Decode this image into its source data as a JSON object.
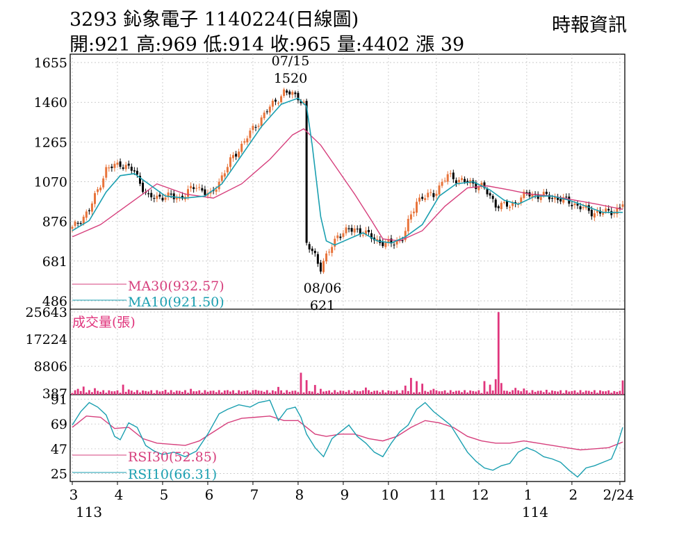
{
  "header": {
    "title": "3293  鈊象電子 1140224(日線圖)",
    "ohlc": "開:921 高:969 低:914 收:965 量:4402 漲 39",
    "brand": "時報資訊"
  },
  "colors": {
    "up": "#e8743b",
    "down": "#000000",
    "ma30": "#d63f7c",
    "ma10": "#1a9fb0",
    "rsi30": "#d63f7c",
    "rsi10": "#1a9fb0",
    "volume": "#e0357d"
  },
  "chart_data": [
    {
      "type": "candlestick",
      "panel": "price",
      "ylim": [
        486,
        1655
      ],
      "yticks": [
        "1655",
        "1460",
        "1265",
        "1070",
        "876",
        "681",
        "486"
      ],
      "xticks": [
        "3",
        "4",
        "5",
        "6",
        "7",
        "8",
        "9",
        "10",
        "11",
        "12",
        "1",
        "2",
        "2/24"
      ],
      "xsub": [
        "113",
        "114"
      ],
      "annotations": [
        {
          "date": "07/15",
          "value": "1520"
        },
        {
          "date": "08/06",
          "value": "621"
        }
      ],
      "legend": [
        "MA30(932.57)",
        "MA10(921.50)"
      ],
      "anchors": [
        [
          0,
          840
        ],
        [
          6,
          930
        ],
        [
          12,
          1130
        ],
        [
          17,
          1160
        ],
        [
          22,
          1120
        ],
        [
          27,
          990
        ],
        [
          33,
          1000
        ],
        [
          38,
          990
        ],
        [
          44,
          1050
        ],
        [
          49,
          1000
        ],
        [
          56,
          1170
        ],
        [
          62,
          1290
        ],
        [
          69,
          1420
        ],
        [
          75,
          1510
        ],
        [
          80,
          1490
        ],
        [
          82,
          1450
        ],
        [
          83,
          760
        ],
        [
          86,
          710
        ],
        [
          88,
          650
        ],
        [
          90,
          700
        ],
        [
          94,
          810
        ],
        [
          100,
          840
        ],
        [
          106,
          800
        ],
        [
          111,
          760
        ],
        [
          117,
          790
        ],
        [
          122,
          980
        ],
        [
          128,
          1010
        ],
        [
          133,
          1100
        ],
        [
          139,
          1070
        ],
        [
          145,
          1050
        ],
        [
          150,
          960
        ],
        [
          155,
          950
        ],
        [
          161,
          1010
        ],
        [
          167,
          1000
        ],
        [
          172,
          990
        ],
        [
          178,
          960
        ],
        [
          184,
          920
        ],
        [
          190,
          920
        ],
        [
          194,
          940
        ],
        [
          195,
          965
        ]
      ],
      "ma30": [
        [
          0,
          800
        ],
        [
          10,
          860
        ],
        [
          20,
          960
        ],
        [
          30,
          1060
        ],
        [
          40,
          1010
        ],
        [
          50,
          990
        ],
        [
          60,
          1060
        ],
        [
          70,
          1180
        ],
        [
          78,
          1300
        ],
        [
          82,
          1330
        ],
        [
          88,
          1250
        ],
        [
          94,
          1130
        ],
        [
          100,
          1010
        ],
        [
          106,
          880
        ],
        [
          110,
          790
        ],
        [
          116,
          780
        ],
        [
          124,
          830
        ],
        [
          132,
          950
        ],
        [
          140,
          1040
        ],
        [
          147,
          1050
        ],
        [
          155,
          1030
        ],
        [
          162,
          1010
        ],
        [
          170,
          1000
        ],
        [
          178,
          980
        ],
        [
          186,
          960
        ],
        [
          195,
          935
        ]
      ],
      "ma10": [
        [
          0,
          830
        ],
        [
          6,
          880
        ],
        [
          12,
          1020
        ],
        [
          17,
          1100
        ],
        [
          22,
          1110
        ],
        [
          27,
          1060
        ],
        [
          33,
          1000
        ],
        [
          40,
          990
        ],
        [
          47,
          1000
        ],
        [
          53,
          1060
        ],
        [
          60,
          1200
        ],
        [
          67,
          1340
        ],
        [
          74,
          1450
        ],
        [
          80,
          1480
        ],
        [
          83,
          1440
        ],
        [
          85,
          1250
        ],
        [
          88,
          900
        ],
        [
          90,
          780
        ],
        [
          93,
          760
        ],
        [
          98,
          790
        ],
        [
          103,
          820
        ],
        [
          108,
          780
        ],
        [
          113,
          770
        ],
        [
          118,
          800
        ],
        [
          124,
          860
        ],
        [
          130,
          1000
        ],
        [
          136,
          1060
        ],
        [
          142,
          1070
        ],
        [
          148,
          1030
        ],
        [
          153,
          980
        ],
        [
          158,
          960
        ],
        [
          164,
          1000
        ],
        [
          170,
          1000
        ],
        [
          176,
          980
        ],
        [
          182,
          950
        ],
        [
          188,
          920
        ],
        [
          195,
          920
        ]
      ]
    },
    {
      "type": "bar",
      "panel": "volume",
      "title": "成交量(張)",
      "ylim": [
        0,
        25643
      ],
      "yticks": [
        "25643",
        "17224",
        "8806",
        "387"
      ],
      "spikes": [
        [
          2,
          1800
        ],
        [
          4,
          2500
        ],
        [
          8,
          2000
        ],
        [
          18,
          3100
        ],
        [
          20,
          1600
        ],
        [
          33,
          1500
        ],
        [
          42,
          1800
        ],
        [
          55,
          1400
        ],
        [
          65,
          1500
        ],
        [
          73,
          2400
        ],
        [
          81,
          6800
        ],
        [
          83,
          4500
        ],
        [
          86,
          3000
        ],
        [
          88,
          1800
        ],
        [
          104,
          2200
        ],
        [
          118,
          2800
        ],
        [
          120,
          5200
        ],
        [
          122,
          4200
        ],
        [
          124,
          3400
        ],
        [
          128,
          1800
        ],
        [
          146,
          4200
        ],
        [
          148,
          3100
        ],
        [
          150,
          4800
        ],
        [
          151,
          25600
        ],
        [
          152,
          3600
        ],
        [
          157,
          2100
        ],
        [
          160,
          1900
        ],
        [
          168,
          1500
        ],
        [
          178,
          1300
        ],
        [
          192,
          1100
        ],
        [
          195,
          4402
        ]
      ]
    },
    {
      "type": "line",
      "panel": "rsi",
      "ylim": [
        18,
        95
      ],
      "yticks": [
        "91",
        "69",
        "47",
        "25"
      ],
      "legend": [
        "RSI30(52.85)",
        "RSI10(66.31)"
      ],
      "rsi10": [
        [
          0,
          68
        ],
        [
          3,
          80
        ],
        [
          6,
          88
        ],
        [
          9,
          84
        ],
        [
          12,
          77
        ],
        [
          15,
          58
        ],
        [
          17,
          55
        ],
        [
          20,
          70
        ],
        [
          23,
          66
        ],
        [
          26,
          50
        ],
        [
          29,
          45
        ],
        [
          32,
          42
        ],
        [
          36,
          44
        ],
        [
          40,
          40
        ],
        [
          44,
          45
        ],
        [
          48,
          60
        ],
        [
          52,
          78
        ],
        [
          55,
          82
        ],
        [
          59,
          86
        ],
        [
          63,
          84
        ],
        [
          66,
          88
        ],
        [
          70,
          90
        ],
        [
          73,
          72
        ],
        [
          76,
          82
        ],
        [
          79,
          84
        ],
        [
          81,
          75
        ],
        [
          83,
          60
        ],
        [
          86,
          48
        ],
        [
          89,
          40
        ],
        [
          92,
          56
        ],
        [
          95,
          62
        ],
        [
          98,
          68
        ],
        [
          101,
          58
        ],
        [
          104,
          52
        ],
        [
          107,
          44
        ],
        [
          110,
          40
        ],
        [
          113,
          52
        ],
        [
          116,
          62
        ],
        [
          119,
          68
        ],
        [
          122,
          82
        ],
        [
          125,
          88
        ],
        [
          128,
          80
        ],
        [
          131,
          74
        ],
        [
          134,
          68
        ],
        [
          137,
          56
        ],
        [
          140,
          44
        ],
        [
          143,
          36
        ],
        [
          146,
          30
        ],
        [
          149,
          28
        ],
        [
          152,
          32
        ],
        [
          155,
          34
        ],
        [
          158,
          44
        ],
        [
          161,
          48
        ],
        [
          164,
          45
        ],
        [
          167,
          40
        ],
        [
          170,
          38
        ],
        [
          173,
          35
        ],
        [
          176,
          28
        ],
        [
          179,
          22
        ],
        [
          182,
          30
        ],
        [
          185,
          32
        ],
        [
          188,
          35
        ],
        [
          191,
          38
        ],
        [
          193,
          50
        ],
        [
          195,
          66
        ]
      ],
      "rsi30": [
        [
          0,
          66
        ],
        [
          5,
          76
        ],
        [
          10,
          75
        ],
        [
          15,
          65
        ],
        [
          20,
          66
        ],
        [
          25,
          56
        ],
        [
          30,
          52
        ],
        [
          35,
          51
        ],
        [
          40,
          50
        ],
        [
          45,
          54
        ],
        [
          50,
          62
        ],
        [
          55,
          70
        ],
        [
          60,
          74
        ],
        [
          65,
          75
        ],
        [
          70,
          76
        ],
        [
          75,
          72
        ],
        [
          80,
          72
        ],
        [
          83,
          66
        ],
        [
          86,
          60
        ],
        [
          90,
          58
        ],
        [
          95,
          60
        ],
        [
          100,
          60
        ],
        [
          105,
          56
        ],
        [
          110,
          54
        ],
        [
          115,
          58
        ],
        [
          120,
          66
        ],
        [
          125,
          72
        ],
        [
          130,
          70
        ],
        [
          135,
          66
        ],
        [
          140,
          58
        ],
        [
          145,
          54
        ],
        [
          150,
          52
        ],
        [
          155,
          52
        ],
        [
          160,
          54
        ],
        [
          165,
          52
        ],
        [
          170,
          50
        ],
        [
          175,
          48
        ],
        [
          180,
          46
        ],
        [
          185,
          47
        ],
        [
          190,
          48
        ],
        [
          195,
          53
        ]
      ]
    }
  ]
}
